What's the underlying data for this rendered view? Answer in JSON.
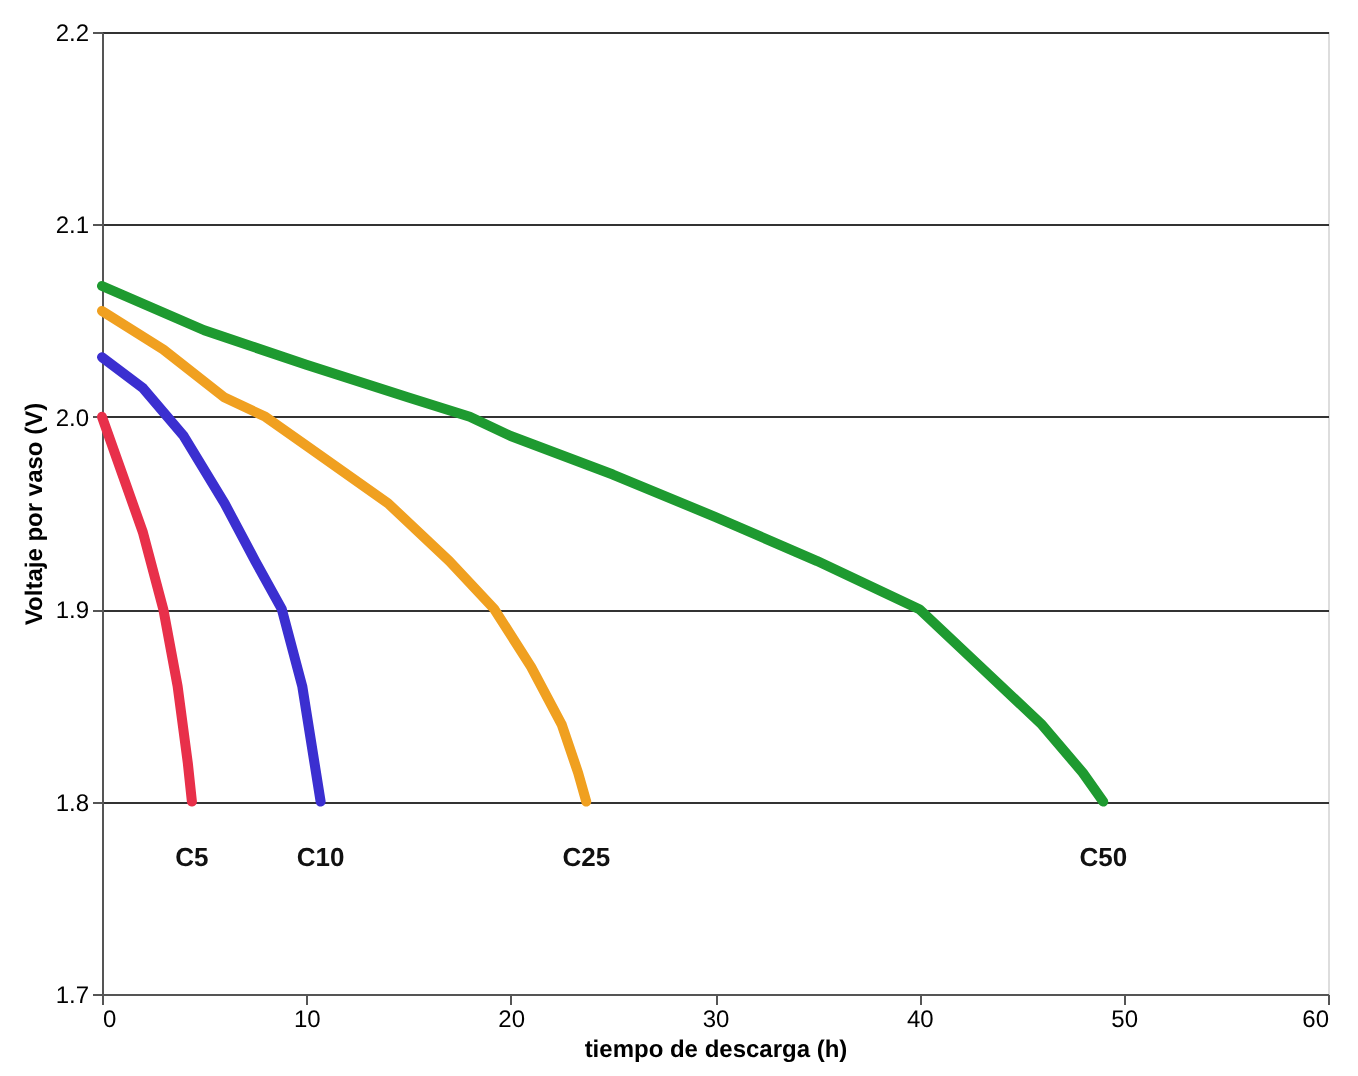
{
  "chart_data": {
    "type": "line",
    "xlabel": "tiempo de descarga (h)",
    "ylabel": "Voltaje por vaso (V)",
    "xlim": [
      0,
      60
    ],
    "xticks": [
      0,
      10,
      20,
      30,
      40,
      50,
      60
    ],
    "ylim": [
      1.7,
      2.2
    ],
    "yticks": [
      1.7,
      1.8,
      1.9,
      {
        "value": 2,
        "label": "2.0"
      },
      2.1,
      2.2
    ],
    "grid": "y",
    "legend": false,
    "marker": "none",
    "line_style": "solid",
    "series": [
      {
        "name": "C5",
        "color": "#e8304a",
        "x": [
          0,
          1,
          2,
          3,
          3.7,
          4.2,
          4.4
        ],
        "values": [
          2.0,
          1.97,
          1.94,
          1.9,
          1.86,
          1.82,
          1.8
        ]
      },
      {
        "name": "C10",
        "color": "#3b2fd0",
        "x": [
          0,
          2,
          4,
          6,
          7.5,
          8.8,
          9.8,
          10.4,
          10.7
        ],
        "values": [
          2.031,
          2.015,
          1.99,
          1.955,
          1.925,
          1.9,
          1.86,
          1.82,
          1.8
        ]
      },
      {
        "name": "C25",
        "color": "#f0a020",
        "x": [
          0,
          3,
          6,
          8,
          10,
          14,
          17,
          19.2,
          21,
          22.5,
          23.3,
          23.7
        ],
        "values": [
          2.055,
          2.035,
          2.01,
          2.0,
          1.985,
          1.955,
          1.925,
          1.9,
          1.87,
          1.84,
          1.815,
          1.8
        ]
      },
      {
        "name": "C50",
        "color": "#1e9a30",
        "x": [
          0,
          5,
          10,
          15,
          18,
          20,
          25,
          30,
          35,
          40,
          43,
          46,
          48,
          49
        ],
        "values": [
          2.068,
          2.045,
          2.027,
          2.01,
          2.0,
          1.99,
          1.97,
          1.948,
          1.925,
          1.9,
          1.87,
          1.84,
          1.815,
          1.8
        ]
      }
    ]
  }
}
